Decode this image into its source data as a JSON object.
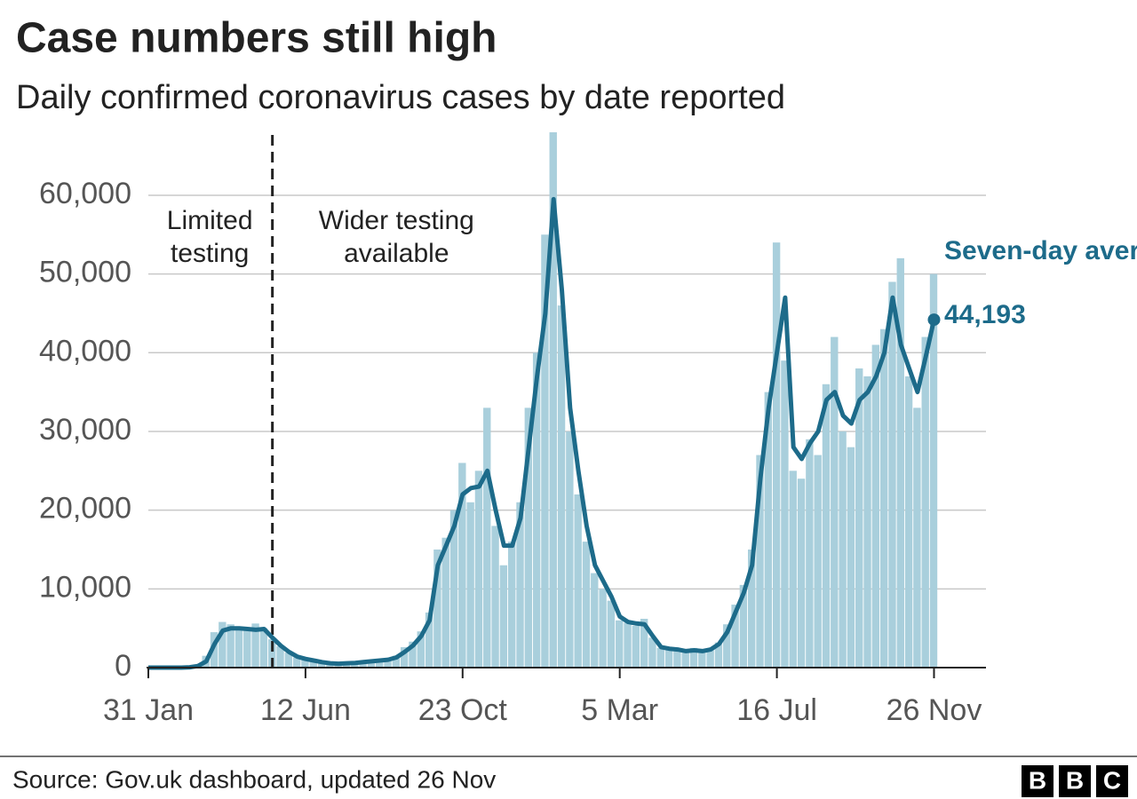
{
  "chart_data": {
    "type": "bar-line",
    "title": "Case numbers still high",
    "subtitle": "Daily confirmed coronavirus cases by date reported",
    "source": "Source: Gov.uk dashboard, updated 26 Nov",
    "logo": [
      "B",
      "B",
      "C"
    ],
    "x": [
      0,
      7,
      14,
      21,
      28,
      35,
      42,
      49,
      56,
      63,
      70,
      77,
      84,
      91,
      98,
      105,
      112,
      119,
      126,
      133,
      140,
      147,
      154,
      161,
      168,
      175,
      182,
      189,
      196,
      203,
      210,
      217,
      224,
      231,
      238,
      245,
      252,
      259,
      266,
      273,
      280,
      287,
      294,
      301,
      308,
      315,
      322,
      329,
      336,
      343,
      350,
      357,
      364,
      371,
      378,
      385,
      392,
      399,
      406,
      413,
      420,
      427,
      434,
      441,
      448,
      455,
      462,
      469,
      476,
      483,
      490,
      497,
      504,
      511,
      518,
      525,
      532,
      539,
      546,
      553,
      560,
      567,
      574,
      581,
      588,
      595,
      602,
      609,
      616,
      623,
      630,
      637,
      644,
      651,
      658,
      665
    ],
    "series": [
      {
        "color": "#a9cfdc",
        "values": [
          0,
          0,
          0,
          0,
          0,
          100,
          400,
          1500,
          4500,
          5800,
          5500,
          5200,
          4700,
          5600,
          5000,
          3600,
          2700,
          1900,
          1300,
          1200,
          950,
          650,
          500,
          600,
          500,
          700,
          650,
          850,
          1000,
          1100,
          1500,
          2600,
          3300,
          4600,
          7000,
          15000,
          16500,
          20000,
          26000,
          21000,
          25000,
          33000,
          18000,
          13000,
          16000,
          21000,
          33000,
          40000,
          55000,
          68000,
          46000,
          30000,
          22000,
          16000,
          12000,
          10000,
          8500,
          6000,
          5700,
          5300,
          6200,
          3800,
          2500,
          2300,
          2400,
          2000,
          2500,
          2000,
          2200,
          3200,
          5500,
          8000,
          10500,
          15000,
          27000,
          35000,
          54000,
          39000,
          25000,
          24000,
          29000,
          27000,
          36000,
          42000,
          30000,
          28000,
          38000,
          37000,
          41000,
          43000,
          49000,
          52000,
          37000,
          33000,
          42000,
          50000
        ]
      },
      {
        "name": "Seven-day average:",
        "color": "#1d6b8a",
        "end_label": "44,193",
        "values": [
          0,
          0,
          0,
          0,
          0,
          50,
          200,
          800,
          3000,
          4700,
          5000,
          5000,
          4900,
          4800,
          4900,
          3800,
          2800,
          2000,
          1400,
          1100,
          900,
          700,
          550,
          500,
          550,
          600,
          700,
          800,
          900,
          1000,
          1300,
          2000,
          2800,
          4000,
          6000,
          13000,
          15500,
          18000,
          22000,
          22800,
          23000,
          25000,
          20000,
          15500,
          15500,
          19000,
          28000,
          37000,
          45000,
          59500,
          48000,
          33000,
          25000,
          18000,
          13000,
          11000,
          9000,
          6500,
          5800,
          5600,
          5500,
          4000,
          2600,
          2400,
          2300,
          2100,
          2200,
          2100,
          2300,
          3000,
          4500,
          7000,
          9500,
          13000,
          24000,
          33000,
          40000,
          47000,
          28000,
          26500,
          28500,
          30000,
          34000,
          35000,
          32000,
          31000,
          34000,
          35000,
          37000,
          40000,
          47000,
          41000,
          38000,
          35000,
          39500,
          44193
        ]
      }
    ],
    "divider": 105,
    "annotations": [
      {
        "x": 52,
        "lines": [
          "Limited",
          "testing"
        ]
      },
      {
        "x": 210,
        "lines": [
          "Wider testing",
          "available"
        ]
      }
    ],
    "xlim": [
      0,
      709
    ],
    "xticks": [
      {
        "value": 0,
        "label": "31 Jan"
      },
      {
        "value": 133,
        "label": "12 Jun"
      },
      {
        "value": 266,
        "label": "23 Oct"
      },
      {
        "value": 399,
        "label": "5 Mar"
      },
      {
        "value": 532,
        "label": "16 Jul"
      },
      {
        "value": 665,
        "label": "26 Nov"
      }
    ],
    "ylim": [
      0,
      68000
    ],
    "yticks": [
      0,
      {
        "value": 10000,
        "label": "10,000"
      },
      {
        "value": 20000,
        "label": "20,000"
      },
      {
        "value": 30000,
        "label": "30,000"
      },
      {
        "value": 40000,
        "label": "40,000"
      },
      {
        "value": 50000,
        "label": "50,000"
      },
      {
        "value": 60000,
        "label": "60,000"
      }
    ],
    "grid": true
  }
}
